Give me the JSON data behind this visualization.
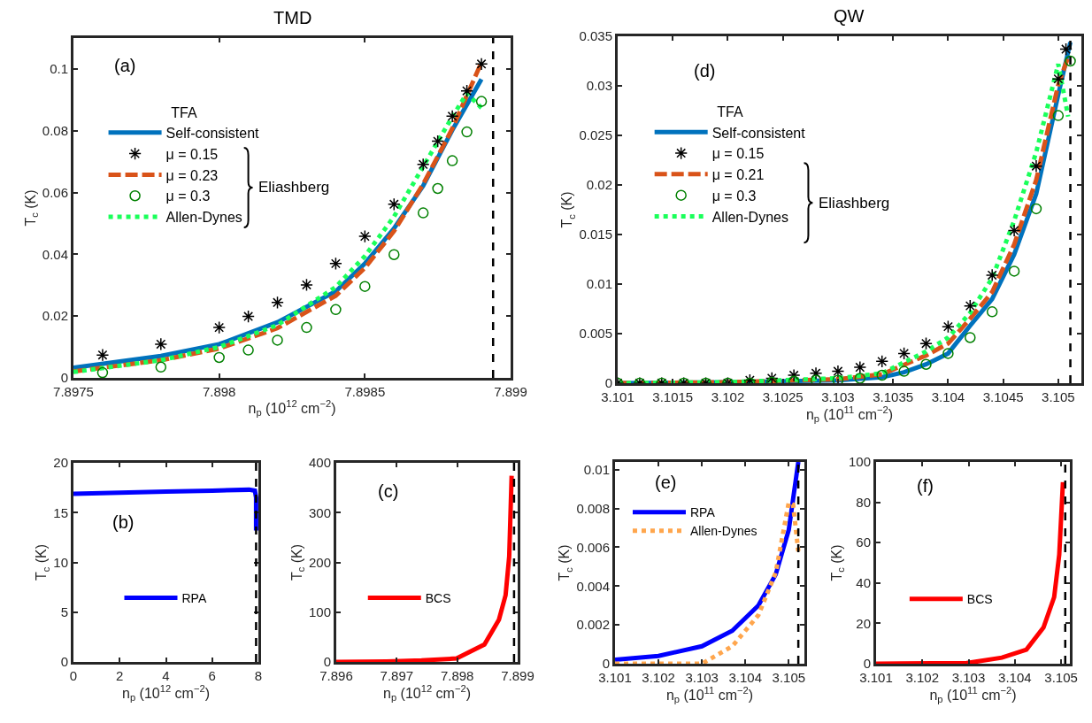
{
  "chart_data": [
    {
      "type": "line",
      "title": "TMD",
      "xlabel": "n$_{p}$ (10$^{12}$ cm$^{−2}$)",
      "ylabel": "T$_{c}$ (K)",
      "xlim": [
        7.8975,
        7.899
      ],
      "xticks": [
        7.8975,
        7.898,
        7.8985,
        7.899
      ],
      "ylim": [
        0,
        0.11
      ],
      "yticks": [
        0,
        0.02,
        0.04,
        0.06,
        0.08,
        0.1
      ],
      "legend": "top left",
      "legend_title": "TFA",
      "annotations": [
        "(a)",
        "Eliashberg"
      ],
      "ref_lines": [
        {
          "axis": "x",
          "value": 7.89894,
          "color": "#000000",
          "line_style": "dashed"
        }
      ],
      "series": [
        {
          "name": "Self-consistent",
          "color": "#0072bd",
          "line_style": "solid",
          "x": [
            7.8975,
            7.8978,
            7.898,
            7.8982,
            7.8984,
            7.8985,
            7.8986,
            7.8987,
            7.8988,
            7.8989
          ],
          "values": [
            0.0033,
            0.0071,
            0.0109,
            0.018,
            0.028,
            0.037,
            0.0484,
            0.0622,
            0.0802,
            0.0967
          ]
        },
        {
          "name": "μ = 0.15",
          "type": "scatter",
          "color": "#000000",
          "marker": "cross",
          "x": [
            7.8976,
            7.8978,
            7.898,
            7.8981,
            7.8982,
            7.8983,
            7.8984,
            7.8985,
            7.8986,
            7.8987,
            7.89875,
            7.8988,
            7.89885,
            7.8989
          ],
          "values": [
            0.0074,
            0.0109,
            0.0163,
            0.0199,
            0.0244,
            0.0301,
            0.037,
            0.0458,
            0.0562,
            0.0691,
            0.0766,
            0.0847,
            0.0929,
            0.1016
          ]
        },
        {
          "name": "μ = 0.23",
          "color": "#d95319",
          "line_style": "dashed",
          "x": [
            7.8975,
            7.8978,
            7.898,
            7.8982,
            7.8984,
            7.8985,
            7.8986,
            7.8987,
            7.8988,
            7.8989
          ],
          "values": [
            0.0021,
            0.0057,
            0.0095,
            0.0161,
            0.0266,
            0.0356,
            0.0475,
            0.0627,
            0.0807,
            0.1021
          ]
        },
        {
          "name": "μ = 0.3",
          "type": "scatter",
          "color": "#008000",
          "marker": "circle",
          "x": [
            7.8976,
            7.8978,
            7.898,
            7.8981,
            7.8982,
            7.8983,
            7.8984,
            7.8985,
            7.8986,
            7.8987,
            7.89875,
            7.8988,
            7.89885,
            7.8989
          ],
          "values": [
            0.0017,
            0.0035,
            0.0066,
            0.009,
            0.0122,
            0.0163,
            0.0221,
            0.0296,
            0.0399,
            0.0534,
            0.0613,
            0.0703,
            0.0796,
            0.0895
          ]
        },
        {
          "name": "Allen-Dynes",
          "color": "#1aff5a",
          "line_style": "dotted",
          "x": [
            7.8975,
            7.8978,
            7.898,
            7.8982,
            7.8984,
            7.8985,
            7.8986,
            7.8987,
            7.8988,
            7.89885,
            7.8989
          ],
          "values": [
            0.0019,
            0.0057,
            0.01,
            0.0171,
            0.0294,
            0.0394,
            0.0522,
            0.0684,
            0.0845,
            0.0921,
            0.0874
          ]
        }
      ]
    },
    {
      "type": "line",
      "title": "QW",
      "xlabel": "n$_{p}$ (10$^{11}$ cm$^{−2}$)",
      "ylabel": "T$_{c}$ (K)",
      "xlim": [
        3.101,
        3.10521
      ],
      "xticks": [
        3.101,
        3.1015,
        3.102,
        3.1025,
        3.103,
        3.1035,
        3.104,
        3.1045,
        3.105
      ],
      "ylim": [
        0,
        0.035
      ],
      "yticks": [
        0,
        0.005,
        0.01,
        0.015,
        0.02,
        0.025,
        0.03,
        0.035
      ],
      "legend": "top left",
      "legend_title": "TFA",
      "annotations": [
        "(d)",
        "Eliashberg"
      ],
      "ref_lines": [
        {
          "axis": "x",
          "value": 3.10511,
          "color": "#000000",
          "line_style": "dashed"
        }
      ],
      "series": [
        {
          "name": "Self-consistent",
          "color": "#0072bd",
          "line_style": "solid",
          "x": [
            3.101,
            3.102,
            3.103,
            3.1034,
            3.1036,
            3.1038,
            3.104,
            3.1042,
            3.1044,
            3.1046,
            3.1048,
            3.105,
            3.10511
          ],
          "values": [
            0,
            0.0001,
            0.0003,
            0.0006,
            0.0011,
            0.0019,
            0.003,
            0.0058,
            0.0085,
            0.013,
            0.0191,
            0.0291,
            0.0344
          ]
        },
        {
          "name": "μ = 0.15",
          "type": "scatter",
          "color": "#000000",
          "marker": "cross",
          "x": [
            3.101,
            3.1012,
            3.1014,
            3.1016,
            3.1018,
            3.102,
            3.1022,
            3.1024,
            3.1026,
            3.1028,
            3.103,
            3.1032,
            3.1034,
            3.1036,
            3.1038,
            3.104,
            3.1042,
            3.1044,
            3.1046,
            3.1048,
            3.105,
            3.10507
          ],
          "values": [
            0,
            0,
            0,
            0,
            0,
            0,
            0.0003,
            0.0005,
            0.0008,
            0.001,
            0.0012,
            0.0016,
            0.0022,
            0.003,
            0.004,
            0.0057,
            0.0078,
            0.0109,
            0.0154,
            0.0219,
            0.0307,
            0.0337
          ]
        },
        {
          "name": "μ = 0.21",
          "color": "#d95319",
          "line_style": "dashed",
          "x": [
            3.101,
            3.102,
            3.103,
            3.1034,
            3.1038,
            3.104,
            3.1042,
            3.1044,
            3.1046,
            3.1048,
            3.105,
            3.10509
          ],
          "values": [
            0,
            0.0001,
            0.0004,
            0.0009,
            0.0028,
            0.004,
            0.0065,
            0.0092,
            0.014,
            0.0205,
            0.0301,
            0.0329
          ]
        },
        {
          "name": "μ = 0.3",
          "type": "scatter",
          "color": "#008000",
          "marker": "circle",
          "x": [
            3.101,
            3.1012,
            3.1014,
            3.1016,
            3.1018,
            3.102,
            3.1022,
            3.1024,
            3.1026,
            3.1028,
            3.103,
            3.1032,
            3.1034,
            3.1036,
            3.1038,
            3.104,
            3.1042,
            3.1044,
            3.1046,
            3.1048,
            3.105,
            3.10511
          ],
          "values": [
            0,
            0,
            0,
            0,
            0,
            0,
            0,
            0.0001,
            0.0002,
            0.0003,
            0.0003,
            0.0005,
            0.0008,
            0.0012,
            0.0019,
            0.003,
            0.0046,
            0.0072,
            0.0113,
            0.0176,
            0.027,
            0.0325
          ]
        },
        {
          "name": "Allen-Dynes",
          "color": "#1aff5a",
          "line_style": "dotted",
          "x": [
            3.101,
            3.102,
            3.103,
            3.1034,
            3.1038,
            3.104,
            3.1042,
            3.1044,
            3.1046,
            3.1048,
            3.105,
            3.10509
          ],
          "values": [
            0,
            0.0001,
            0.0005,
            0.001,
            0.0032,
            0.0046,
            0.0071,
            0.0106,
            0.0164,
            0.0233,
            0.0322,
            0.0269
          ]
        }
      ]
    },
    {
      "type": "line",
      "xlabel": "n$_{p}$ (10$^{12}$ cm$^{−2}$)",
      "ylabel": "T$_{c}$ (K)",
      "xlim": [
        0,
        8
      ],
      "xticks": [
        0,
        2,
        4,
        6,
        8
      ],
      "ylim": [
        0,
        20
      ],
      "yticks": [
        0,
        5,
        10,
        15,
        20
      ],
      "legend": "bottom",
      "annotations": [
        "(b)"
      ],
      "ref_lines": [
        {
          "axis": "x",
          "value": 7.9,
          "color": "#000000",
          "line_style": "dashed"
        }
      ],
      "series": [
        {
          "name": "RPA",
          "color": "#0000ff",
          "line_style": "solid",
          "x": [
            0,
            2,
            4,
            6,
            7.6,
            7.85,
            7.9,
            7.9
          ],
          "values": [
            16.9,
            17,
            17.1,
            17.2,
            17.3,
            17.2,
            16.5,
            13.2
          ]
        }
      ]
    },
    {
      "type": "line",
      "xlabel": "n$_{p}$ (10$^{12}$ cm$^{−2}$)",
      "ylabel": "T$_{c}$ (K)",
      "xlim": [
        7.896,
        7.899
      ],
      "xticks": [
        7.896,
        7.897,
        7.898,
        7.899
      ],
      "ylim": [
        0,
        400
      ],
      "yticks": [
        0,
        100,
        200,
        300,
        400
      ],
      "legend": "bottom left",
      "annotations": [
        "(c)"
      ],
      "ref_lines": [
        {
          "axis": "x",
          "value": 7.89894,
          "color": "#000000",
          "line_style": "dashed"
        }
      ],
      "series": [
        {
          "name": "BCS",
          "color": "#ff0000",
          "line_style": "solid",
          "x": [
            7.896,
            7.89683,
            7.89741,
            7.89799,
            7.89845,
            7.89869,
            7.8988,
            7.89886,
            7.8989
          ],
          "values": [
            0,
            1,
            3,
            7,
            35,
            85,
            134,
            212,
            374
          ]
        }
      ]
    },
    {
      "type": "line",
      "xlabel": "n$_{p}$ (10$^{11}$ cm$^{−2}$)",
      "ylabel": "T$_{c}$ (K)",
      "xlim": [
        3.101,
        3.10536
      ],
      "xticks": [
        3.101,
        3.102,
        3.103,
        3.104,
        3.105
      ],
      "ylim": [
        0,
        0.0104
      ],
      "yticks": [
        0,
        0.002,
        0.004,
        0.006,
        0.008,
        0.01
      ],
      "legend": "top left",
      "annotations": [
        "(e)"
      ],
      "ref_lines": [
        {
          "axis": "x",
          "value": 3.10522,
          "color": "#000000",
          "line_style": "dashed"
        }
      ],
      "series": [
        {
          "name": "RPA",
          "color": "#0000ff",
          "line_style": "solid",
          "x": [
            3.101,
            3.102,
            3.103,
            3.1037,
            3.1043,
            3.1047,
            3.105,
            3.10522
          ],
          "values": [
            0.0002,
            0.0004,
            0.0009,
            0.0017,
            0.003,
            0.0046,
            0.0069,
            0.0104
          ]
        },
        {
          "name": "Allen-Dynes",
          "color": "#ffa64d",
          "line_style": "dotted",
          "x": [
            3.101,
            3.102,
            3.103,
            3.1037,
            3.1043,
            3.1047,
            3.105,
            3.1051,
            3.10522
          ],
          "values": [
            0,
            0,
            0,
            0.0009,
            0.0025,
            0.0047,
            0.0083,
            0.0082,
            0.0058
          ]
        }
      ]
    },
    {
      "type": "line",
      "xlabel": "n$_{p}$ (10$^{11}$ cm$^{−2}$)",
      "ylabel": "T$_{c}$ (K)",
      "xlim": [
        3.101,
        3.10519
      ],
      "xticks": [
        3.101,
        3.102,
        3.103,
        3.104,
        3.105
      ],
      "ylim": [
        0,
        100
      ],
      "yticks": [
        0,
        20,
        40,
        60,
        80,
        100
      ],
      "legend": "bottom left",
      "annotations": [
        "(f)"
      ],
      "ref_lines": [
        {
          "axis": "x",
          "value": 3.10509,
          "color": "#000000",
          "line_style": "dashed"
        }
      ],
      "series": [
        {
          "name": "BCS",
          "color": "#ff0000",
          "line_style": "solid",
          "x": [
            3.101,
            3.10296,
            3.10372,
            3.10425,
            3.10462,
            3.10485,
            3.10496,
            3.10504
          ],
          "values": [
            0,
            0.3,
            3,
            7,
            18,
            33,
            54,
            90
          ]
        }
      ]
    }
  ]
}
